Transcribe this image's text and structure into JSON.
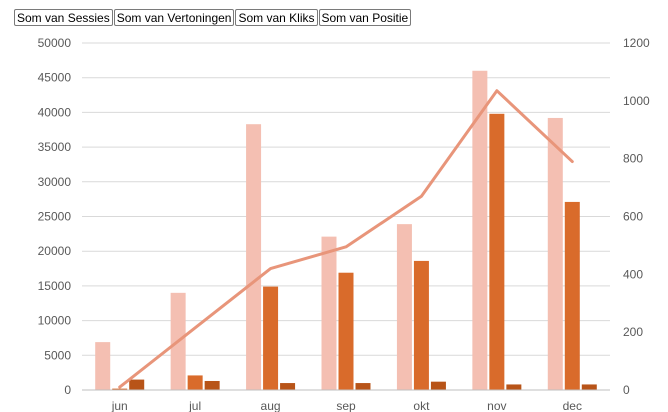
{
  "legend_buttons": [
    "Som van Sessies",
    "Som van Vertoningen",
    "Som van Kliks",
    "Som van Positie"
  ],
  "colors": {
    "sessies": "#f4bfb2",
    "vertoningen": "#d96b2b",
    "kliks": "#b85418",
    "positie": "#e8957a",
    "grid": "#d9d9d9",
    "axis_text": "#595959"
  },
  "chart_data": {
    "type": "bar",
    "categories": [
      "jun",
      "jul",
      "aug",
      "sep",
      "okt",
      "nov",
      "dec"
    ],
    "series": [
      {
        "key": "sessies",
        "axis": "left",
        "values": [
          6900,
          14000,
          38300,
          22100,
          23900,
          46000,
          39200
        ]
      },
      {
        "key": "vertoningen",
        "axis": "left",
        "values": [
          200,
          2100,
          14900,
          16900,
          18600,
          39800,
          27100
        ]
      },
      {
        "key": "kliks",
        "axis": "left",
        "values": [
          1500,
          1300,
          1000,
          1000,
          1200,
          800,
          800
        ]
      },
      {
        "key": "positie",
        "axis": "right",
        "type": "line",
        "values": [
          10,
          215,
          420,
          495,
          670,
          1035,
          790
        ]
      }
    ],
    "y_left": {
      "min": 0,
      "max": 50000,
      "step": 5000
    },
    "y_right": {
      "min": 0,
      "max": 1200,
      "step": 200
    },
    "grid": true,
    "legend": "top-left"
  }
}
